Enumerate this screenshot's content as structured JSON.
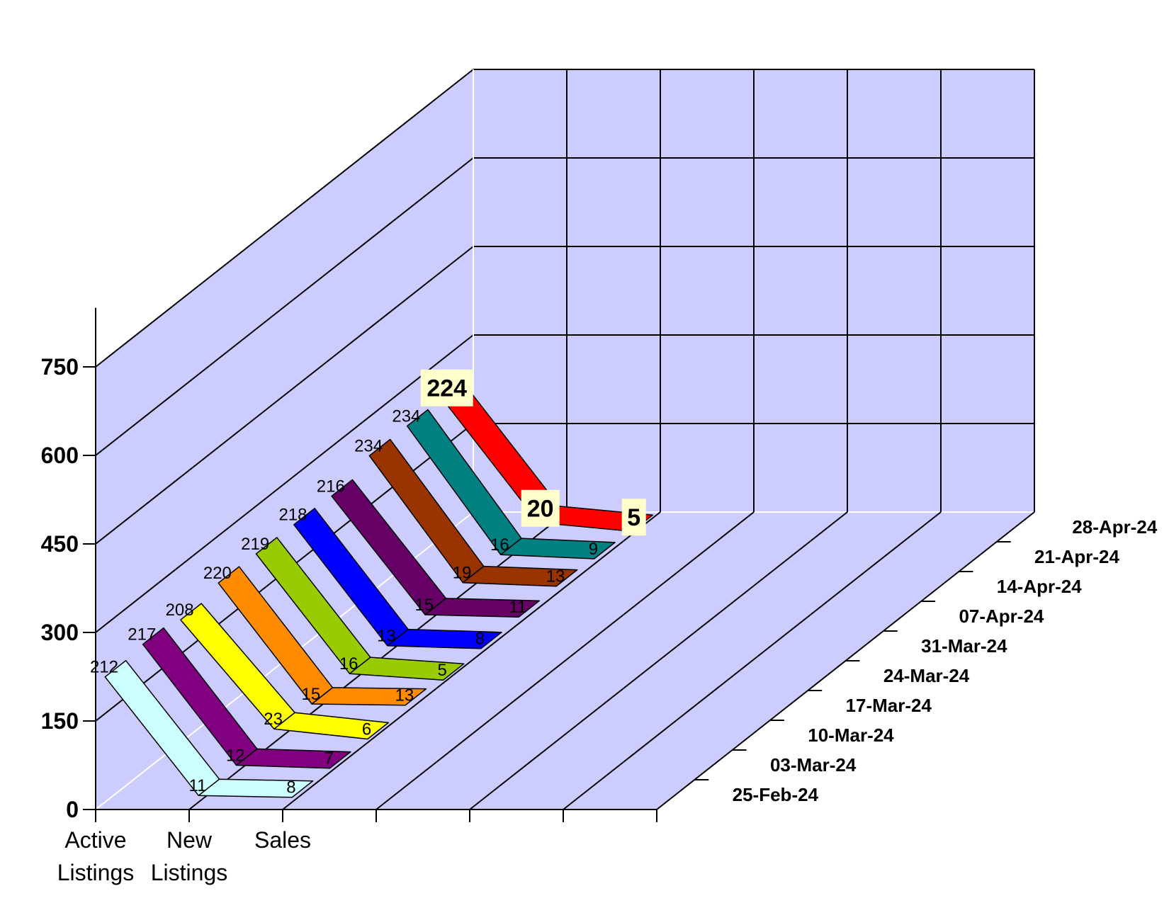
{
  "chart_data": {
    "type": "line",
    "categories": [
      "Active Listings",
      "New Listings",
      "Sales"
    ],
    "category_label_lines": [
      [
        "Active",
        "Listings"
      ],
      [
        "New",
        "Listings"
      ],
      [
        "Sales"
      ]
    ],
    "ylim": [
      0,
      750
    ],
    "yticks": [
      0,
      150,
      300,
      450,
      600,
      750
    ],
    "yticks_text": [
      "0",
      "150",
      "300",
      "450",
      "600",
      "750"
    ],
    "grid": true,
    "series": [
      {
        "name": "25-Feb-24",
        "color": "#CCFFFF",
        "values": [
          212,
          11,
          8
        ],
        "value_labels": [
          "212",
          "11",
          "8"
        ]
      },
      {
        "name": "03-Mar-24",
        "color": "#800080",
        "values": [
          217,
          12,
          7
        ],
        "value_labels": [
          "217",
          "12",
          "7"
        ]
      },
      {
        "name": "10-Mar-24",
        "color": "#FFFF00",
        "values": [
          208,
          23,
          6
        ],
        "value_labels": [
          "208",
          "23",
          "6"
        ]
      },
      {
        "name": "17-Mar-24",
        "color": "#FF8C00",
        "values": [
          220,
          15,
          13
        ],
        "value_labels": [
          "220",
          "15",
          "13"
        ]
      },
      {
        "name": "24-Mar-24",
        "color": "#99CC00",
        "values": [
          219,
          16,
          5
        ],
        "value_labels": [
          "219",
          "16",
          "5"
        ]
      },
      {
        "name": "31-Mar-24",
        "color": "#0000FF",
        "values": [
          218,
          13,
          8
        ],
        "value_labels": [
          "218",
          "13",
          "8"
        ]
      },
      {
        "name": "07-Apr-24",
        "color": "#660066",
        "values": [
          216,
          15,
          11
        ],
        "value_labels": [
          "216",
          "15",
          "11"
        ]
      },
      {
        "name": "14-Apr-24",
        "color": "#993300",
        "values": [
          234,
          19,
          13
        ],
        "value_labels": [
          "234",
          "19",
          "13"
        ]
      },
      {
        "name": "21-Apr-24",
        "color": "#008080",
        "values": [
          234,
          16,
          9
        ],
        "value_labels": [
          "234",
          "16",
          "9"
        ]
      },
      {
        "name": "28-Apr-24",
        "color": "#FF0000",
        "values": [
          224,
          20,
          5
        ],
        "value_labels": [
          "224",
          "20",
          "5"
        ],
        "highlight": true
      }
    ]
  }
}
